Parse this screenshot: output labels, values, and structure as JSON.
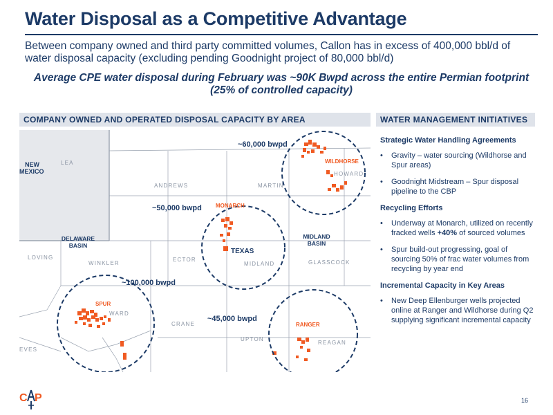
{
  "title": "Water Disposal as a Competitive Advantage",
  "subtitle": "Between company owned and third party committed volumes, Callon has in excess of 400,000 bbl/d of water disposal capacity (excluding pending Goodnight project of 80,000 bbl/d)",
  "highlight": "Average CPE water disposal during February was ~90K Bwpd across the entire Permian footprint (25% of controlled capacity)",
  "left_section": {
    "header": "COMPANY OWNED AND OPERATED DISPOSAL CAPACITY BY AREA"
  },
  "right_section": {
    "header": "WATER MANAGEMENT INITIATIVES"
  },
  "map": {
    "counties": {
      "lea": "LEA",
      "andrews": "ANDREWS",
      "martin": "MARTIN",
      "howard": "HOWARD",
      "loving": "LOVING",
      "winkler": "WINKLER",
      "ector": "ECTOR",
      "midland": "MIDLAND",
      "glasscock": "GLASSCOCK",
      "ward": "WARD",
      "crane": "CRANE",
      "upton": "UPTON",
      "reagan": "REAGAN",
      "reeves": "EVES"
    },
    "states": {
      "nm_line1": "NEW",
      "nm_line2": "MEXICO",
      "texas": "TEXAS"
    },
    "basins": {
      "delaware_line1": "DELAWARE",
      "delaware_line2": "BASIN",
      "midland_line1": "MIDLAND",
      "midland_line2": "BASIN"
    },
    "areas": {
      "wildhorse": {
        "name": "WILDHORSE",
        "capacity": "~60,000 bwpd"
      },
      "monarch": {
        "name": "MONARCH",
        "capacity": "~50,000 bwpd"
      },
      "spur": {
        "name": "SPUR",
        "capacity": "~100,000 bwpd"
      },
      "ranger": {
        "name": "RANGER",
        "capacity": "~45,000 bwpd"
      }
    },
    "colors": {
      "acreage": "#f05a22",
      "circle": "#1c3a66",
      "state_fill": "#e6e8ec",
      "county_line": "#9aa3b0"
    }
  },
  "initiatives": {
    "strategic": {
      "heading": "Strategic Water Handling Agreements",
      "items": [
        "Gravity – water sourcing (Wildhorse and Spur areas)",
        "Goodnight Midstream – Spur disposal pipeline to the CBP"
      ]
    },
    "recycling": {
      "heading": "Recycling Efforts",
      "item1_pre": "Underway at Monarch, utilized on recently fracked wells ",
      "item1_bold": "+40%",
      "item1_post": " of sourced volumes",
      "item2": "Spur build-out progressing, goal of sourcing 50% of frac water volumes from recycling by year end"
    },
    "incremental": {
      "heading": "Incremental Capacity in Key Areas",
      "items": [
        "New Deep Ellenburger wells projected online at Ranger and Wildhorse during Q2 supplying significant incremental capacity"
      ]
    }
  },
  "footer": {
    "page_number": "16",
    "logo_text": "CPE"
  }
}
